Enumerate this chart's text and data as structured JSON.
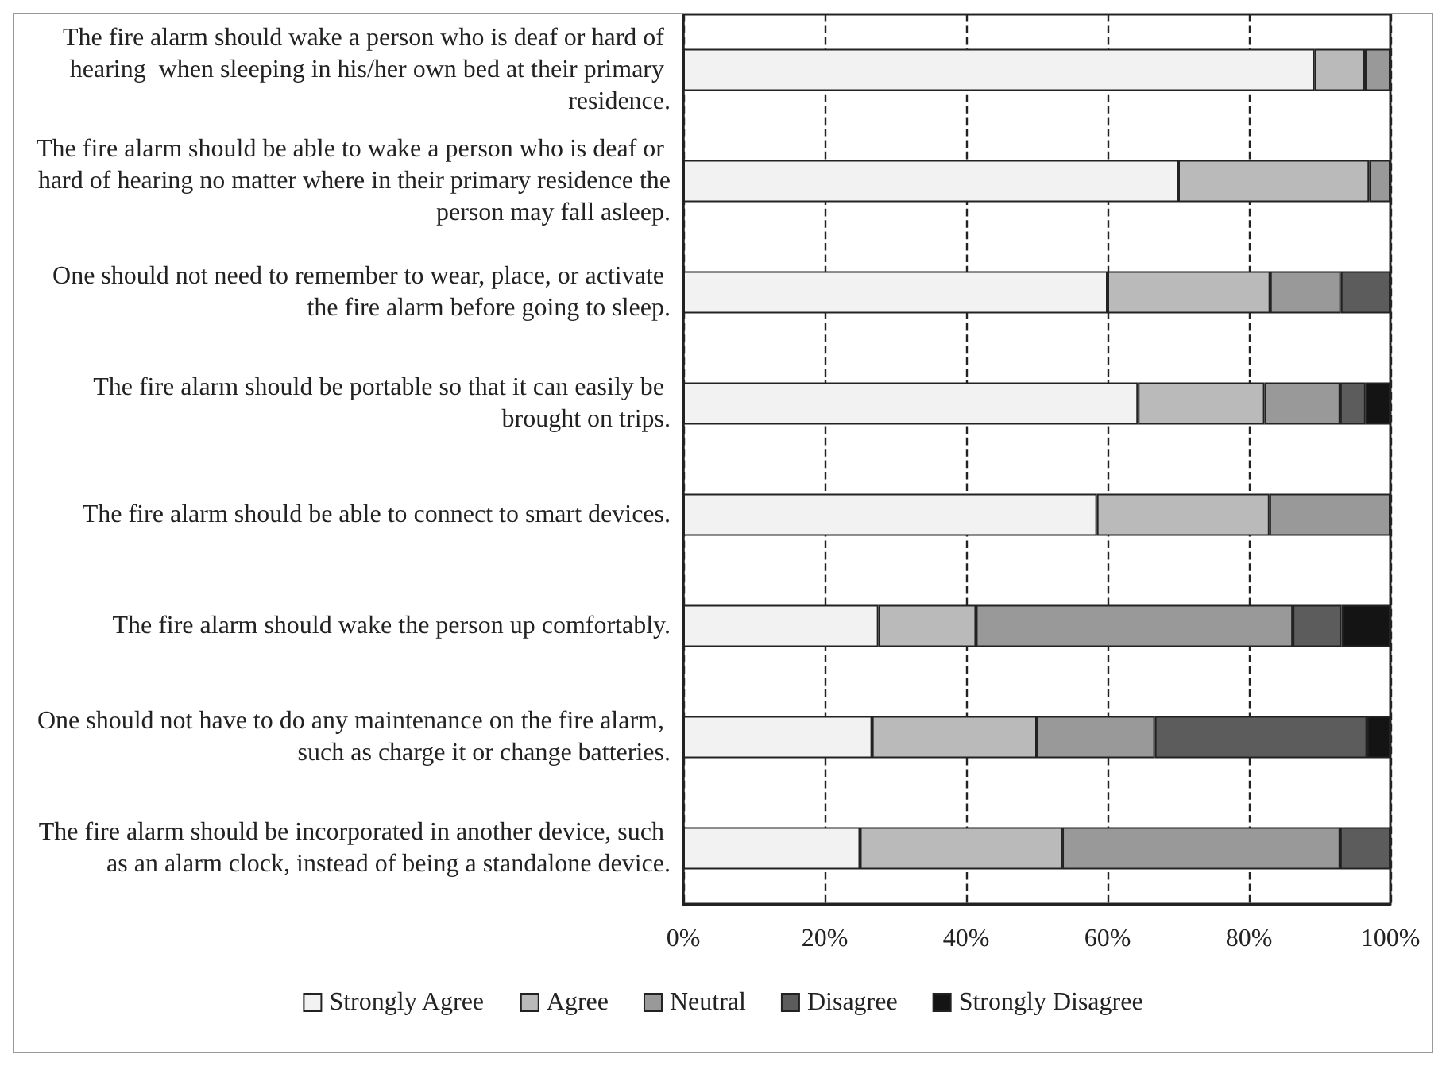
{
  "chart_data": {
    "type": "bar",
    "orientation": "horizontal",
    "stacked": true,
    "categories": [
      "The fire alarm should wake a person who is deaf or hard of hearing  when sleeping in his/her own bed at their primary residence.",
      "The fire alarm should be able to wake a person who is deaf or hard of hearing no matter where in their primary residence the person may fall asleep.",
      "One should not need to remember to wear, place, or activate the fire alarm before going to sleep.",
      "The fire alarm should be portable so that it can easily be brought on trips.",
      "The fire alarm should be able to connect to smart devices.",
      "The fire alarm should wake the person up comfortably.",
      "One should not have to do any maintenance on the fire alarm, such as charge it or change batteries.",
      "The fire alarm should be incorporated in another device, such as an alarm clock, instead of being a standalone device."
    ],
    "series": [
      {
        "name": "Strongly Agree",
        "color": "#f2f2f2",
        "values": [
          89.3,
          70,
          60,
          64.3,
          58.5,
          27.6,
          26.7,
          25
        ]
      },
      {
        "name": "Agree",
        "color": "#bababa",
        "values": [
          7.1,
          27,
          23,
          17.9,
          24.4,
          13.8,
          23.3,
          28.6
        ]
      },
      {
        "name": "Neutral",
        "color": "#999999",
        "values": [
          3.6,
          3,
          10,
          10.7,
          17.1,
          44.8,
          16.7,
          39.3
        ]
      },
      {
        "name": "Disagree",
        "color": "#5c5c5c",
        "values": [
          0,
          0,
          7,
          3.6,
          0,
          6.9,
          30,
          7.1
        ]
      },
      {
        "name": "Strongly Disagree",
        "color": "#141414",
        "values": [
          0,
          0,
          0,
          3.5,
          0,
          6.9,
          3.3,
          0
        ]
      }
    ],
    "xlim": [
      0,
      100
    ],
    "xticks": [
      {
        "value": 0,
        "label": "0%"
      },
      {
        "value": 20,
        "label": "20%"
      },
      {
        "value": 40,
        "label": "40%"
      },
      {
        "value": 60,
        "label": "60%"
      },
      {
        "value": 80,
        "label": "80%"
      },
      {
        "value": 100,
        "label": "100%"
      }
    ],
    "grid": "x",
    "line_style": "dashed",
    "legend": "bottom"
  }
}
